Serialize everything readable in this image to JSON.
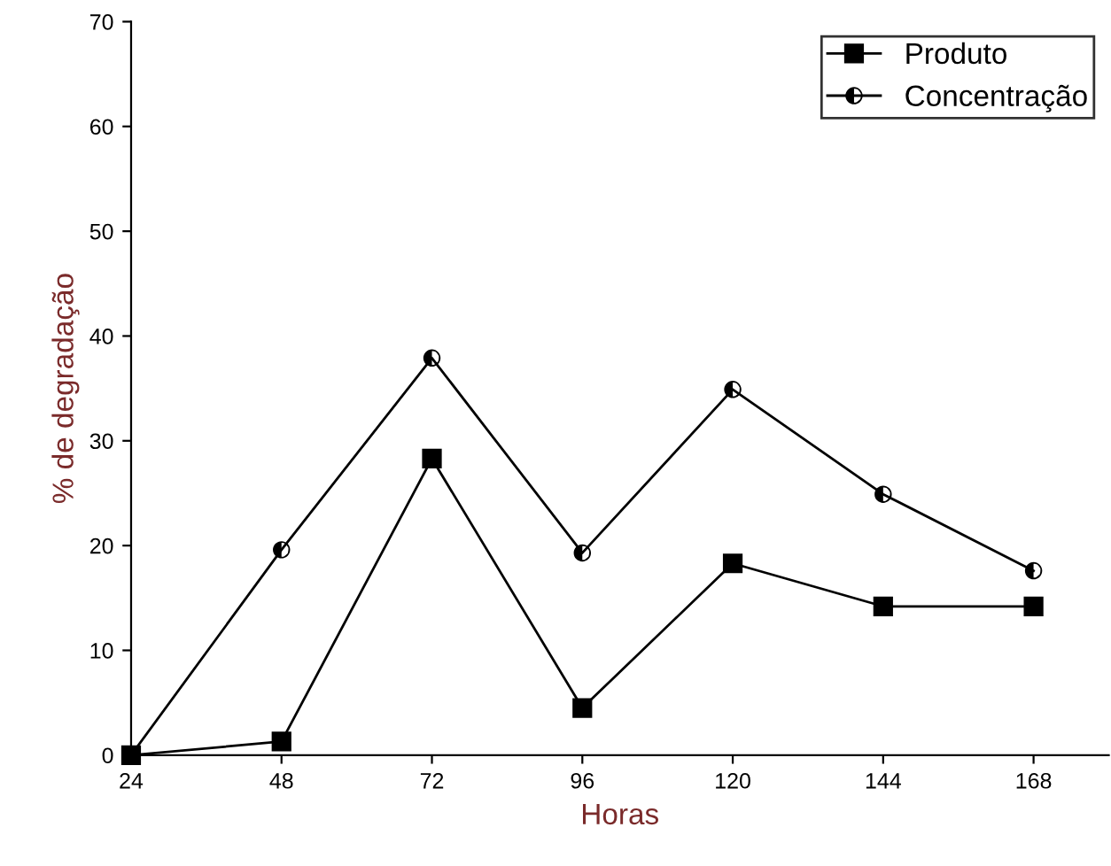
{
  "chart_data": {
    "type": "line",
    "xlabel": "Horas",
    "ylabel": "% de degradação",
    "x": [
      24,
      48,
      72,
      96,
      120,
      144,
      168
    ],
    "series": [
      {
        "name": "Produto",
        "color": "#000000",
        "marker": "square",
        "values": [
          0,
          1.3,
          28.3,
          4.5,
          18.3,
          14.2,
          14.2
        ]
      },
      {
        "name": "Concentração",
        "color": "#000000",
        "marker": "circle",
        "values": [
          0,
          19.6,
          37.9,
          19.3,
          34.9,
          24.9,
          17.6
        ]
      }
    ],
    "xlim": [
      24,
      180
    ],
    "xticks": [
      24,
      48,
      72,
      96,
      120,
      144,
      168
    ],
    "ylim": [
      0,
      70
    ],
    "yticks": [
      0,
      10,
      20,
      30,
      40,
      50,
      60,
      70
    ],
    "grid": false,
    "legend": "top right",
    "line_style": "solid"
  }
}
